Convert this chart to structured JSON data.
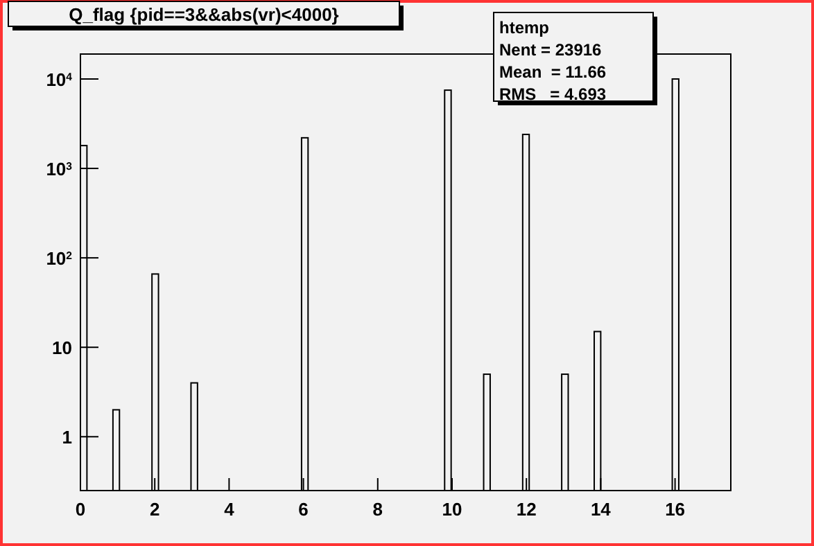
{
  "chart_data": {
    "type": "histogram",
    "title": "Q_flag {pid==3&&abs(vr)<4000}",
    "annotations": [
      "htemp",
      "Nent = 23916",
      "Mean  = 11.66",
      "RMS   = 4.693"
    ],
    "bins": [
      0,
      0.175,
      0.875,
      1.05,
      1.925,
      2.1,
      2.975,
      3.15,
      5.95,
      6.125,
      9.8,
      9.975,
      10.85,
      11.025,
      11.9,
      12.075,
      12.95,
      13.125,
      13.825,
      14,
      15.925,
      16.1
    ],
    "values": [
      1800,
      null,
      2,
      null,
      66,
      null,
      4,
      null,
      2200,
      null,
      7500,
      null,
      5,
      null,
      2400,
      null,
      5,
      null,
      15,
      null,
      10000
    ],
    "color": "#f2f2f2",
    "xlim": [
      0,
      17.5
    ],
    "xticks": [
      0,
      2,
      4,
      6,
      8,
      10,
      12,
      14,
      16
    ],
    "ylim": [
      0.25,
      19000
    ],
    "yticks": [
      {
        "value": 1,
        "label": "1"
      },
      {
        "value": 10,
        "label": "10"
      },
      {
        "value": 100,
        "label": "10$^{2}$"
      },
      {
        "value": 1000,
        "label": "10$^{3}$"
      },
      {
        "value": 10000,
        "label": "10$^{4}$"
      }
    ],
    "log": true,
    "grid": false
  }
}
